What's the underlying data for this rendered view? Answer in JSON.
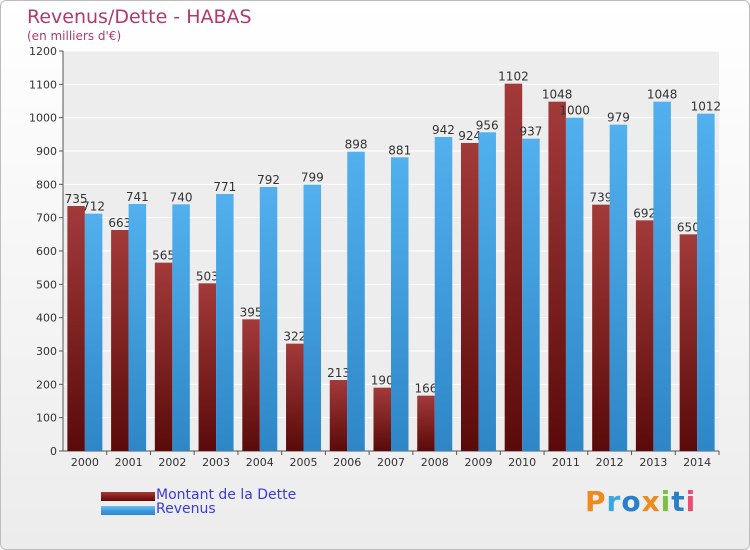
{
  "chart_data": {
    "type": "bar",
    "title": "Revenus/Dette - HABAS",
    "subtitle": "(en milliers d'€)",
    "xlabel": "",
    "ylabel": "",
    "categories": [
      "2000",
      "2001",
      "2002",
      "2003",
      "2004",
      "2005",
      "2006",
      "2007",
      "2008",
      "2009",
      "2010",
      "2011",
      "2012",
      "2013",
      "2014"
    ],
    "series": [
      {
        "name": "Montant de la Dette",
        "color": "#8b1c1c",
        "values": [
          735,
          663,
          565,
          503,
          395,
          322,
          213,
          190,
          166,
          924,
          1102,
          1048,
          739,
          692,
          650
        ]
      },
      {
        "name": "Revenus",
        "color": "#3d9be0",
        "values": [
          712,
          741,
          740,
          771,
          792,
          799,
          898,
          881,
          942,
          956,
          937,
          1000,
          979,
          1048,
          1012
        ]
      }
    ],
    "ylim": [
      0,
      1200
    ],
    "yticks": [
      0,
      100,
      200,
      300,
      400,
      500,
      600,
      700,
      800,
      900,
      1000,
      1100,
      1200
    ],
    "grid": true,
    "legend": "bottom-left"
  },
  "logo": {
    "text": "Proxiti",
    "colors": [
      "#f08a1c",
      "#3aa8e0",
      "#2a7fc8",
      "#f08a1c",
      "#7ac143",
      "#2a7fc8",
      "#e94e77"
    ]
  }
}
